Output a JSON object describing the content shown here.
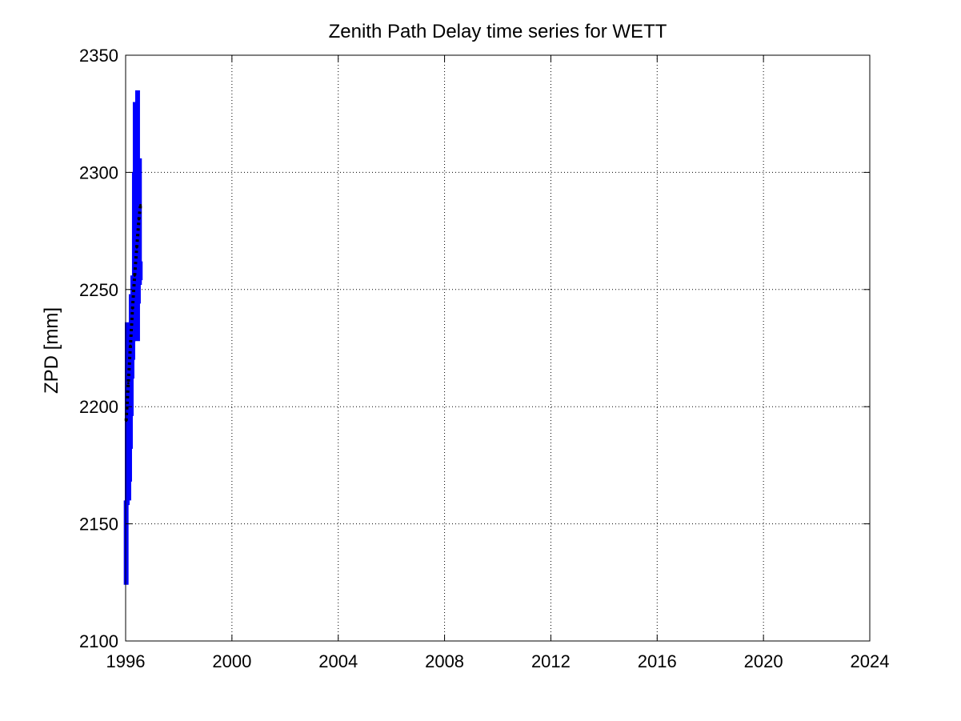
{
  "chart_data": {
    "type": "line",
    "title": "Zenith Path Delay time series for WETT",
    "xlabel": "",
    "ylabel": "ZPD [mm]",
    "xlim": [
      1996,
      2024
    ],
    "ylim": [
      2100,
      2350
    ],
    "x_ticks": [
      "1996",
      "2000",
      "2004",
      "2008",
      "2012",
      "2016",
      "2020",
      "2024"
    ],
    "y_ticks": [
      "2100",
      "2150",
      "2200",
      "2250",
      "2300",
      "2350"
    ],
    "grid": true,
    "legend": "none",
    "colors": {
      "series": "#0000ff",
      "trend": "#000000"
    },
    "series": [
      {
        "style": "blue bars",
        "values": [
          {
            "x": 1996.02,
            "low": 2124,
            "high": 2160
          },
          {
            "x": 1996.06,
            "low": 2158,
            "high": 2236
          },
          {
            "x": 1996.09,
            "low": 2176,
            "high": 2213
          },
          {
            "x": 1996.12,
            "low": 2160,
            "high": 2210
          },
          {
            "x": 1996.15,
            "low": 2168,
            "high": 2206
          },
          {
            "x": 1996.18,
            "low": 2182,
            "high": 2232
          },
          {
            "x": 1996.21,
            "low": 2196,
            "high": 2248
          },
          {
            "x": 1996.24,
            "low": 2212,
            "high": 2236
          },
          {
            "x": 1996.27,
            "low": 2220,
            "high": 2256
          },
          {
            "x": 1996.3,
            "low": 2228,
            "high": 2248
          },
          {
            "x": 1996.33,
            "low": 2236,
            "high": 2300
          },
          {
            "x": 1996.36,
            "low": 2240,
            "high": 2330
          },
          {
            "x": 1996.39,
            "low": 2234,
            "high": 2310
          },
          {
            "x": 1996.42,
            "low": 2246,
            "high": 2320
          },
          {
            "x": 1996.45,
            "low": 2228,
            "high": 2335
          },
          {
            "x": 1996.48,
            "low": 2244,
            "high": 2296
          },
          {
            "x": 1996.52,
            "low": 2252,
            "high": 2306
          },
          {
            "x": 1996.55,
            "low": 2254,
            "high": 2262
          }
        ]
      },
      {
        "style": "black dotted trend",
        "values": [
          {
            "x": 1996.02,
            "y": 2194
          },
          {
            "x": 1996.1,
            "y": 2210
          },
          {
            "x": 1996.18,
            "y": 2226
          },
          {
            "x": 1996.26,
            "y": 2242
          },
          {
            "x": 1996.34,
            "y": 2256
          },
          {
            "x": 1996.42,
            "y": 2268
          },
          {
            "x": 1996.5,
            "y": 2280
          },
          {
            "x": 1996.56,
            "y": 2286
          }
        ]
      }
    ]
  }
}
